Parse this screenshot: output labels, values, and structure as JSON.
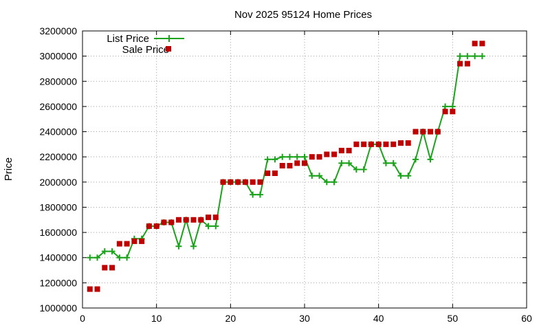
{
  "chart_data": {
    "type": "line",
    "title": "Nov 2025 95124 Home Prices",
    "xlabel": "",
    "ylabel": "Price",
    "xlim": [
      0,
      60
    ],
    "ylim": [
      1000000,
      3200000
    ],
    "x_ticks": [
      0,
      10,
      20,
      30,
      40,
      50,
      60
    ],
    "y_ticks": [
      1000000,
      1200000,
      1400000,
      1600000,
      1800000,
      2000000,
      2200000,
      2400000,
      2600000,
      2800000,
      3000000,
      3200000
    ],
    "x_tick_labels": [
      "0",
      "10",
      "20",
      "30",
      "40",
      "50",
      "60"
    ],
    "y_tick_labels": [
      "1000000",
      "1200000",
      "1400000",
      "1600000",
      "1800000",
      "2000000",
      "2200000",
      "2400000",
      "2600000",
      "2800000",
      "3000000",
      "3200000"
    ],
    "grid": true,
    "legend_position": "top-left",
    "series": [
      {
        "name": "List Price",
        "style": "line-with-plus-markers",
        "color": "#1aa31a",
        "x": [
          1,
          2,
          3,
          4,
          5,
          6,
          7,
          8,
          9,
          10,
          11,
          12,
          13,
          14,
          15,
          16,
          17,
          18,
          19,
          20,
          21,
          22,
          23,
          24,
          25,
          26,
          27,
          28,
          29,
          30,
          31,
          32,
          33,
          34,
          35,
          36,
          37,
          38,
          39,
          40,
          41,
          42,
          43,
          44,
          45,
          46,
          47,
          48,
          49,
          50,
          51,
          52,
          53,
          54
        ],
        "y": [
          1400000,
          1400000,
          1450000,
          1450000,
          1400000,
          1400000,
          1550000,
          1550000,
          1650000,
          1650000,
          1680000,
          1680000,
          1490000,
          1700000,
          1490000,
          1700000,
          1650000,
          1650000,
          2000000,
          2000000,
          2000000,
          2000000,
          1900000,
          1900000,
          2180000,
          2180000,
          2200000,
          2200000,
          2200000,
          2200000,
          2050000,
          2050000,
          2000000,
          2000000,
          2150000,
          2150000,
          2100000,
          2100000,
          2300000,
          2300000,
          2150000,
          2150000,
          2050000,
          2050000,
          2180000,
          2400000,
          2180000,
          2400000,
          2600000,
          2600000,
          3000000,
          3000000,
          3000000,
          3000000
        ]
      },
      {
        "name": "Sale Price",
        "style": "square-markers",
        "color": "#c00000",
        "x": [
          1,
          2,
          3,
          4,
          5,
          6,
          7,
          8,
          9,
          10,
          11,
          12,
          13,
          14,
          15,
          16,
          17,
          18,
          19,
          20,
          21,
          22,
          23,
          24,
          25,
          26,
          27,
          28,
          29,
          30,
          31,
          32,
          33,
          34,
          35,
          36,
          37,
          38,
          39,
          40,
          41,
          42,
          43,
          44,
          45,
          46,
          47,
          48,
          49,
          50,
          51,
          52,
          53,
          54
        ],
        "y": [
          1150000,
          1150000,
          1320000,
          1320000,
          1510000,
          1510000,
          1530000,
          1530000,
          1650000,
          1650000,
          1680000,
          1680000,
          1700000,
          1700000,
          1700000,
          1700000,
          1720000,
          1720000,
          2000000,
          2000000,
          2000000,
          2000000,
          2000000,
          2000000,
          2070000,
          2070000,
          2130000,
          2130000,
          2150000,
          2150000,
          2200000,
          2200000,
          2220000,
          2220000,
          2250000,
          2250000,
          2300000,
          2300000,
          2300000,
          2300000,
          2300000,
          2300000,
          2310000,
          2310000,
          2400000,
          2400000,
          2400000,
          2400000,
          2560000,
          2560000,
          2940000,
          2940000,
          3100000,
          3100000
        ]
      }
    ]
  }
}
